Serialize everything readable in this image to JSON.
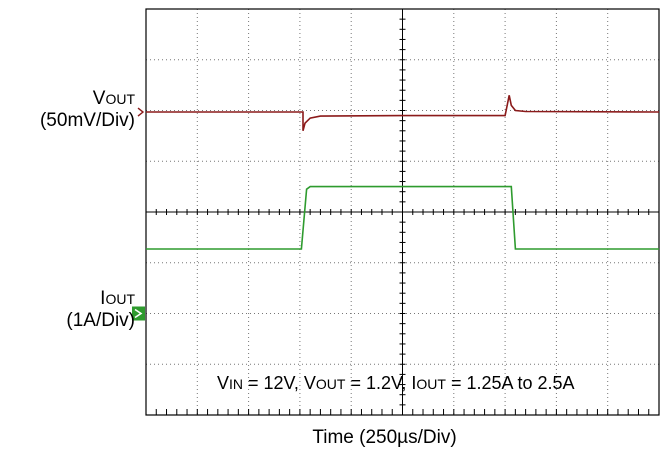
{
  "chart_data": {
    "type": "line",
    "xlabel": "Time (250µs/Div)",
    "xlabel_parts": {
      "prefix": "Time  (250",
      "mu": "µ",
      "suffix": "s/Div)"
    },
    "x_divisions": 10,
    "y_divisions": 8,
    "grid": true,
    "series": [
      {
        "name": "VOUT",
        "name_main": "V",
        "name_sub": "OUT",
        "scale": "(50mV/Div)",
        "color": "#8b1a1a",
        "x": [
          0,
          3.06,
          3.06,
          3.1,
          3.2,
          3.4,
          5.0,
          7.0,
          7.08,
          7.12,
          7.2,
          7.4,
          10
        ],
        "y": [
          5.97,
          5.97,
          5.6,
          5.75,
          5.85,
          5.89,
          5.9,
          5.9,
          6.3,
          6.1,
          6.0,
          5.98,
          5.97
        ]
      },
      {
        "name": "IOUT",
        "name_main": "I",
        "name_sub": "OUT",
        "scale": "(1A/Div)",
        "color": "#2e9b2e",
        "x": [
          0,
          3.03,
          3.13,
          3.2,
          7.03,
          7.12,
          7.2,
          10
        ],
        "y": [
          3.27,
          3.27,
          4.45,
          4.5,
          4.5,
          4.5,
          3.27,
          3.27
        ]
      }
    ]
  },
  "annotation": {
    "parts": [
      {
        "t": "V",
        "sub": false
      },
      {
        "t": "IN",
        "sub": true
      },
      {
        "t": " = 12V, V",
        "sub": false
      },
      {
        "t": "OUT",
        "sub": true
      },
      {
        "t": " = 1.2V, I",
        "sub": false
      },
      {
        "t": "OUT",
        "sub": true
      },
      {
        "t": " = 1.25A to 2.5A",
        "sub": false
      }
    ]
  }
}
